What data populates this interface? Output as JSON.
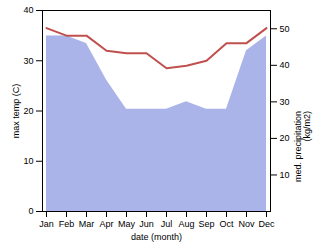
{
  "chart_data": {
    "type": "line",
    "categories": [
      "Jan",
      "Feb",
      "Mar",
      "Apr",
      "May",
      "Jun",
      "Jul",
      "Aug",
      "Sep",
      "Oct",
      "Nov",
      "Dec"
    ],
    "series": [
      {
        "type": "area",
        "axis": "y2",
        "color": "#aab4e8",
        "values": [
          48,
          48,
          46,
          36,
          28,
          28,
          28,
          30,
          28,
          28,
          44,
          48
        ]
      },
      {
        "type": "line",
        "color": "#c0504d",
        "values": [
          36.5,
          35.0,
          35.0,
          32.0,
          31.5,
          31.5,
          28.5,
          29.0,
          30.0,
          33.5,
          33.5,
          36.5
        ]
      }
    ],
    "xlabel": "date (month)",
    "ylabel": "max temp (C)",
    "y2label": "med. precipitation\n(kg/m2)",
    "ylim": [
      0,
      40
    ],
    "yticks": [
      0,
      10,
      20,
      30,
      40
    ],
    "y2lim": [
      0,
      55
    ],
    "y2ticks": [
      10,
      20,
      30,
      40,
      50
    ],
    "grid": false
  }
}
